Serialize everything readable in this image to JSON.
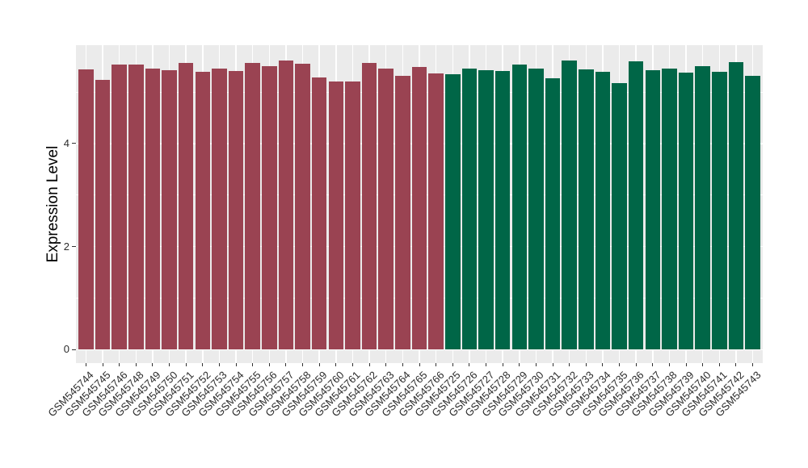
{
  "figure": {
    "background": "#FFFFFF",
    "panel_background": "#EBEBEB",
    "gridline_color": "#FFFFFF",
    "axis_text_color": "#2b2b2b",
    "tick_mark_color": "#333333"
  },
  "chart_data": {
    "type": "bar",
    "title": "",
    "xlabel": "",
    "ylabel": "Expression Level",
    "ylim": [
      -0.26,
      5.91
    ],
    "yticks": [
      0,
      2,
      4
    ],
    "minor_gridlines": [
      1,
      3,
      5
    ],
    "grid": true,
    "legend": false,
    "x_tick_rotation_deg": 45,
    "bar_relative_width": 0.9,
    "group_colors": {
      "group_a": "#9A4352",
      "group_b": "#006647"
    },
    "bars": [
      {
        "label": "GSM545744",
        "value": 5.44,
        "group": "group_a"
      },
      {
        "label": "GSM545745",
        "value": 5.23,
        "group": "group_a"
      },
      {
        "label": "GSM545746",
        "value": 5.53,
        "group": "group_a"
      },
      {
        "label": "GSM545748",
        "value": 5.54,
        "group": "group_a"
      },
      {
        "label": "GSM545749",
        "value": 5.46,
        "group": "group_a"
      },
      {
        "label": "GSM545750",
        "value": 5.42,
        "group": "group_a"
      },
      {
        "label": "GSM545751",
        "value": 5.56,
        "group": "group_a"
      },
      {
        "label": "GSM545752",
        "value": 5.4,
        "group": "group_a"
      },
      {
        "label": "GSM545753",
        "value": 5.46,
        "group": "group_a"
      },
      {
        "label": "GSM545754",
        "value": 5.41,
        "group": "group_a"
      },
      {
        "label": "GSM545755",
        "value": 5.57,
        "group": "group_a"
      },
      {
        "label": "GSM545756",
        "value": 5.51,
        "group": "group_a"
      },
      {
        "label": "GSM545757",
        "value": 5.62,
        "group": "group_a"
      },
      {
        "label": "GSM545758",
        "value": 5.55,
        "group": "group_a"
      },
      {
        "label": "GSM545759",
        "value": 5.29,
        "group": "group_a"
      },
      {
        "label": "GSM545760",
        "value": 5.2,
        "group": "group_a"
      },
      {
        "label": "GSM545761",
        "value": 5.2,
        "group": "group_a"
      },
      {
        "label": "GSM545762",
        "value": 5.57,
        "group": "group_a"
      },
      {
        "label": "GSM545763",
        "value": 5.46,
        "group": "group_a"
      },
      {
        "label": "GSM545764",
        "value": 5.32,
        "group": "group_a"
      },
      {
        "label": "GSM545765",
        "value": 5.48,
        "group": "group_a"
      },
      {
        "label": "GSM545766",
        "value": 5.36,
        "group": "group_a"
      },
      {
        "label": "GSM545725",
        "value": 5.34,
        "group": "group_b"
      },
      {
        "label": "GSM545726",
        "value": 5.45,
        "group": "group_b"
      },
      {
        "label": "GSM545727",
        "value": 5.43,
        "group": "group_b"
      },
      {
        "label": "GSM545728",
        "value": 5.41,
        "group": "group_b"
      },
      {
        "label": "GSM545729",
        "value": 5.53,
        "group": "group_b"
      },
      {
        "label": "GSM545730",
        "value": 5.45,
        "group": "group_b"
      },
      {
        "label": "GSM545731",
        "value": 5.27,
        "group": "group_b"
      },
      {
        "label": "GSM545732",
        "value": 5.61,
        "group": "group_b"
      },
      {
        "label": "GSM545733",
        "value": 5.44,
        "group": "group_b"
      },
      {
        "label": "GSM545734",
        "value": 5.4,
        "group": "group_b"
      },
      {
        "label": "GSM545735",
        "value": 5.17,
        "group": "group_b"
      },
      {
        "label": "GSM545736",
        "value": 5.59,
        "group": "group_b"
      },
      {
        "label": "GSM545737",
        "value": 5.42,
        "group": "group_b"
      },
      {
        "label": "GSM545738",
        "value": 5.46,
        "group": "group_b"
      },
      {
        "label": "GSM545739",
        "value": 5.37,
        "group": "group_b"
      },
      {
        "label": "GSM545740",
        "value": 5.5,
        "group": "group_b"
      },
      {
        "label": "GSM545741",
        "value": 5.4,
        "group": "group_b"
      },
      {
        "label": "GSM545742",
        "value": 5.58,
        "group": "group_b"
      },
      {
        "label": "GSM545743",
        "value": 5.31,
        "group": "group_b"
      }
    ]
  }
}
